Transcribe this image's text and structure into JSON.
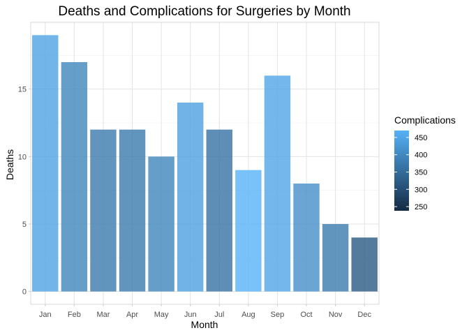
{
  "chart_data": {
    "type": "bar",
    "title": "Deaths and Complications for Surgeries by Month",
    "xlabel": "Month",
    "ylabel": "Deaths",
    "categories": [
      "Jan",
      "Feb",
      "Mar",
      "Apr",
      "May",
      "Jun",
      "Jul",
      "Aug",
      "Sep",
      "Oct",
      "Nov",
      "Dec"
    ],
    "values": [
      19,
      17,
      12,
      12,
      10,
      14,
      12,
      9,
      16,
      8,
      5,
      4
    ],
    "fill_values": [
      445,
      395,
      375,
      375,
      395,
      440,
      360,
      470,
      450,
      410,
      375,
      320
    ],
    "ylim": [
      -0.95,
      19.95
    ],
    "yticks": [
      0,
      5,
      10,
      15
    ],
    "grid": true,
    "legend": {
      "title": "Complications",
      "position": "right",
      "range": [
        238,
        470
      ],
      "ticks": [
        250,
        300,
        350,
        400,
        450
      ],
      "color_low": "#132b43",
      "color_high": "#56b1f7"
    },
    "bar_opacity": 0.8
  }
}
